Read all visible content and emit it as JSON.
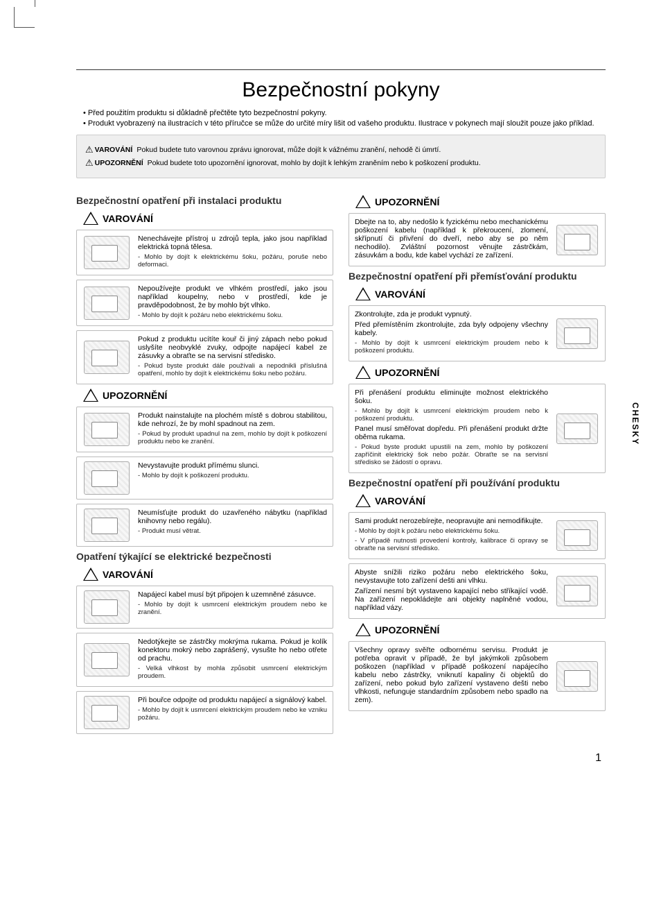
{
  "page": {
    "title": "Bezpečnostní pokyny",
    "side_tab": "CHESKY",
    "page_number": "1"
  },
  "intro": {
    "bullets": [
      "Před použitím produktu si důkladně přečtěte tyto bezpečnostní pokyny.",
      "Produkt vyobrazený na ilustracích v této příručce se může do určité míry lišit od vašeho produktu. Ilustrace v pokynech mají sloužit pouze jako příklad."
    ]
  },
  "warn_box": {
    "rows": [
      {
        "label": "VAROVÁNÍ",
        "text": "Pokud budete tuto varovnou zprávu ignorovat, může dojít k vážnému zranění, nehodě či úmrtí."
      },
      {
        "label": "UPOZORNĚNÍ",
        "text": "Pokud budete toto upozornění ignorovat, mohlo by dojít k lehkým zraněním nebo k poškození produktu."
      }
    ]
  },
  "labels": {
    "warning": "VAROVÁNÍ",
    "caution": "UPOZORNĚNÍ"
  },
  "left": {
    "s1_title": "Bezpečnostní opatření při instalaci produktu",
    "s1_warn": [
      {
        "lines": [
          "Nenechávejte přístroj u zdrojů tepla, jako jsou například elektrická topná tělesa."
        ],
        "subs": [
          "Mohlo by dojít k elektrickému šoku, požáru, poruše nebo deformaci."
        ]
      },
      {
        "lines": [
          "Nepoužívejte produkt ve vlhkém prostředí, jako jsou například koupelny, nebo v prostředí, kde je pravděpodobnost, že by mohlo být vlhko."
        ],
        "subs": [
          "Mohlo by dojít k požáru nebo elektrickému šoku."
        ]
      },
      {
        "lines": [
          "Pokud z produktu ucítíte kouř či jiný zápach nebo pokud uslyšíte neobvyklé zvuky, odpojte napájecí kabel ze zásuvky a obraťte se na servisní středisko."
        ],
        "subs": [
          "Pokud byste produkt dále používali a nepodnikli příslušná opatření, mohlo by dojít k elektrickému šoku nebo požáru."
        ]
      }
    ],
    "s1_caution": [
      {
        "lines": [
          "Produkt nainstalujte na plochém místě s dobrou stabilitou, kde nehrozí, že by mohl spadnout na zem."
        ],
        "subs": [
          "Pokud by produkt upadnul na zem, mohlo by dojít k poškození produktu nebo ke zranění."
        ]
      },
      {
        "lines": [
          "Nevystavujte produkt přímému slunci."
        ],
        "subs": [
          "Mohlo by dojít k poškození produktu."
        ]
      },
      {
        "lines": [
          "Neumísťujte produkt do uzavřeného nábytku (například knihovny nebo regálu)."
        ],
        "subs": [
          "Produkt musí větrat."
        ]
      }
    ],
    "s2_title": "Opatření týkající se elektrické bezpečnosti",
    "s2_warn": [
      {
        "lines": [
          "Napájecí kabel musí být připojen k uzemněné zásuvce."
        ],
        "subs": [
          "Mohlo by dojít k usmrcení elektrickým proudem nebo ke zranění."
        ]
      },
      {
        "lines": [
          "Nedotýkejte se zástrčky mokrýma rukama. Pokud je kolík konektoru mokrý nebo zaprášený, vysušte ho nebo otřete od prachu."
        ],
        "subs": [
          "Velká vlhkost by mohla způsobit usmrcení elektrickým proudem."
        ]
      },
      {
        "lines": [
          "Při bouřce odpojte od produktu napájecí a signálový kabel."
        ],
        "subs": [
          "Mohlo by dojít k usmrcení elektrickým proudem nebo ke vzniku požáru."
        ]
      }
    ]
  },
  "right": {
    "top_caution": {
      "lines": [
        "Dbejte na to, aby nedošlo k fyzickému nebo mechanickému poškození kabelu (například k překroucení, zlomení, skřípnutí či přivření do dveří, nebo aby se po něm nechodilo). Zvláštní pozornost věnujte zástrčkám, zásuvkám a bodu, kde kabel vychází ze zařízení."
      ]
    },
    "s3_title": "Bezpečnostní opatření při přemísťování produktu",
    "s3_warn": [
      {
        "lines": [
          "Zkontrolujte, zda je produkt vypnutý.",
          "Před přemístěním zkontrolujte, zda byly odpojeny všechny kabely."
        ],
        "subs": [
          "Mohlo by dojít k usmrcení elektrickým proudem nebo k poškození produktu."
        ]
      }
    ],
    "s3_caution": [
      {
        "lines": [
          "Při přenášení produktu eliminujte možnost elektrického šoku."
        ],
        "subs": [
          "Mohlo by dojít k usmrcení elektrickým proudem nebo k poškození produktu."
        ],
        "lines2": [
          "Panel musí směřovat dopředu. Při přenášení produkt držte oběma rukama."
        ],
        "subs2": [
          "Pokud byste produkt upustili na zem, mohlo by poškození zapříčinit elektrický šok nebo požár. Obraťte se na servisní středisko se žádostí o opravu."
        ]
      }
    ],
    "s4_title": "Bezpečnostní opatření při používání produktu",
    "s4_warn": [
      {
        "lines": [
          "Sami produkt nerozebírejte, neopravujte ani nemodifikujte."
        ],
        "subs": [
          "Mohlo by dojít k požáru nebo elektrickému šoku.",
          "V případě nutnosti provedení kontroly, kalibrace či opravy se obraťte na servisní středisko."
        ]
      },
      {
        "lines": [
          "Abyste snížili riziko požáru nebo elektrického šoku, nevystavujte toto zařízení dešti ani vlhku.",
          "Zařízení nesmí být vystaveno kapající nebo stříkající vodě. Na zařízení nepokládejte ani objekty naplněné vodou, například vázy."
        ]
      }
    ],
    "s4_caution": [
      {
        "lines": [
          "Všechny opravy svěřte odbornému servisu. Produkt je potřeba opravit v případě, že byl jakýmkoli způsobem poškozen (například v případě poškození napájecího kabelu nebo zástrčky, vniknutí kapaliny či objektů do zařízení, nebo pokud bylo zařízení vystaveno dešti nebo vlhkosti, nefunguje standardním způsobem nebo spadlo na zem)."
        ]
      }
    ]
  },
  "colors": {
    "rule": "#333333",
    "box_bg": "#efefef",
    "box_border": "#cccccc",
    "block_border": "#bbbbbb"
  }
}
